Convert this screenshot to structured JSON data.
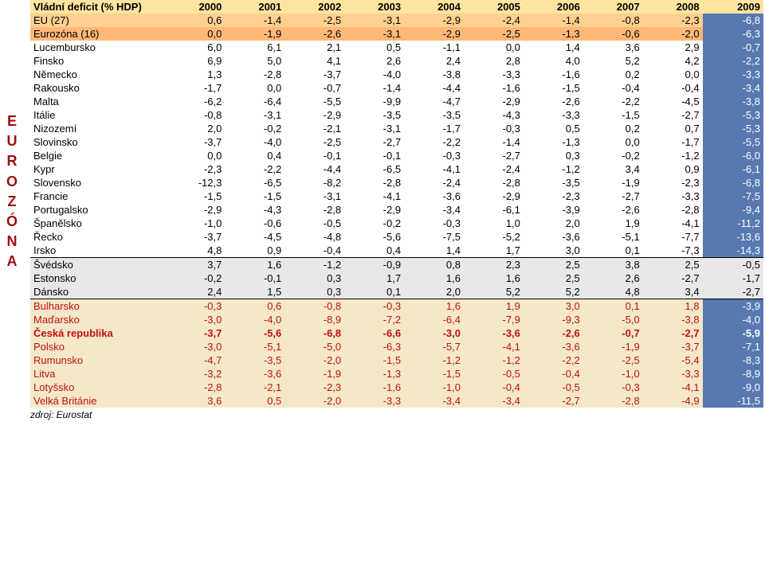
{
  "title": "Vládní deficit (% HDP)",
  "years": [
    "2000",
    "2001",
    "2002",
    "2003",
    "2004",
    "2005",
    "2006",
    "2007",
    "2008",
    "2009"
  ],
  "sidebar": [
    "E",
    "U",
    "R",
    "O",
    "Z",
    "Ó",
    "N",
    "A"
  ],
  "colors": {
    "header_bg": "#ffe4a0",
    "eu_bg": "#ffd090",
    "ez_bg": "#ffb878",
    "last_blue": "#5878b0",
    "group1_bg": "#e8e8e8",
    "group2_bg": "#f5e8c8",
    "red_text": "#c01010",
    "white": "#ffffff"
  },
  "groups": [
    {
      "style": "header_row",
      "rows": [
        {
          "label": "Vládní deficit (% HDP)",
          "vals": [
            "2000",
            "2001",
            "2002",
            "2003",
            "2004",
            "2005",
            "2006",
            "2007",
            "2008",
            "2009"
          ],
          "bold": true
        }
      ]
    },
    {
      "style": "eu_row",
      "rows": [
        {
          "label": "EU (27)",
          "vals": [
            "0,6",
            "-1,4",
            "-2,5",
            "-3,1",
            "-2,9",
            "-2,4",
            "-1,4",
            "-0,8",
            "-2,3",
            "-6,8"
          ],
          "last_blue": true
        }
      ]
    },
    {
      "style": "ez_row",
      "rows": [
        {
          "label": "Eurozóna (16)",
          "vals": [
            "0,0",
            "-1,9",
            "-2,6",
            "-3,1",
            "-2,9",
            "-2,5",
            "-1,3",
            "-0,6",
            "-2,0",
            "-6,3"
          ],
          "last_blue": true
        }
      ]
    },
    {
      "style": "plain",
      "sep_after": true,
      "rows": [
        {
          "label": "Lucembursko",
          "vals": [
            "6,0",
            "6,1",
            "2,1",
            "0,5",
            "-1,1",
            "0,0",
            "1,4",
            "3,6",
            "2,9",
            "-0,7"
          ],
          "last_blue": true
        },
        {
          "label": "Finsko",
          "vals": [
            "6,9",
            "5,0",
            "4,1",
            "2,6",
            "2,4",
            "2,8",
            "4,0",
            "5,2",
            "4,2",
            "-2,2"
          ],
          "last_blue": true
        },
        {
          "label": "Německo",
          "vals": [
            "1,3",
            "-2,8",
            "-3,7",
            "-4,0",
            "-3,8",
            "-3,3",
            "-1,6",
            "0,2",
            "0,0",
            "-3,3"
          ],
          "last_blue": true
        },
        {
          "label": "Rakousko",
          "vals": [
            "-1,7",
            "0,0",
            "-0,7",
            "-1,4",
            "-4,4",
            "-1,6",
            "-1,5",
            "-0,4",
            "-0,4",
            "-3,4"
          ],
          "last_blue": true
        },
        {
          "label": "Malta",
          "vals": [
            "-6,2",
            "-6,4",
            "-5,5",
            "-9,9",
            "-4,7",
            "-2,9",
            "-2,6",
            "-2,2",
            "-4,5",
            "-3,8"
          ],
          "last_blue": true
        },
        {
          "label": "Itálie",
          "vals": [
            "-0,8",
            "-3,1",
            "-2,9",
            "-3,5",
            "-3,5",
            "-4,3",
            "-3,3",
            "-1,5",
            "-2,7",
            "-5,3"
          ],
          "last_blue": true
        },
        {
          "label": "Nizozemí",
          "vals": [
            "2,0",
            "-0,2",
            "-2,1",
            "-3,1",
            "-1,7",
            "-0,3",
            "0,5",
            "0,2",
            "0,7",
            "-5,3"
          ],
          "last_blue": true
        },
        {
          "label": "Slovinsko",
          "vals": [
            "-3,7",
            "-4,0",
            "-2,5",
            "-2,7",
            "-2,2",
            "-1,4",
            "-1,3",
            "0,0",
            "-1,7",
            "-5,5"
          ],
          "last_blue": true
        },
        {
          "label": "Belgie",
          "vals": [
            "0,0",
            "0,4",
            "-0,1",
            "-0,1",
            "-0,3",
            "-2,7",
            "0,3",
            "-0,2",
            "-1,2",
            "-6,0"
          ],
          "last_blue": true
        },
        {
          "label": "Kypr",
          "vals": [
            "-2,3",
            "-2,2",
            "-4,4",
            "-6,5",
            "-4,1",
            "-2,4",
            "-1,2",
            "3,4",
            "0,9",
            "-6,1"
          ],
          "last_blue": true
        },
        {
          "label": "Slovensko",
          "vals": [
            "-12,3",
            "-6,5",
            "-8,2",
            "-2,8",
            "-2,4",
            "-2,8",
            "-3,5",
            "-1,9",
            "-2,3",
            "-6,8"
          ],
          "last_blue": true
        },
        {
          "label": "Francie",
          "vals": [
            "-1,5",
            "-1,5",
            "-3,1",
            "-4,1",
            "-3,6",
            "-2,9",
            "-2,3",
            "-2,7",
            "-3,3",
            "-7,5"
          ],
          "last_blue": true
        },
        {
          "label": "Portugalsko",
          "vals": [
            "-2,9",
            "-4,3",
            "-2,8",
            "-2,9",
            "-3,4",
            "-6,1",
            "-3,9",
            "-2,6",
            "-2,8",
            "-9,4"
          ],
          "last_blue": true
        },
        {
          "label": "Španělsko",
          "vals": [
            "-1,0",
            "-0,6",
            "-0,5",
            "-0,2",
            "-0,3",
            "1,0",
            "2,0",
            "1,9",
            "-4,1",
            "-11,2"
          ],
          "last_blue": true
        },
        {
          "label": "Řecko",
          "vals": [
            "-3,7",
            "-4,5",
            "-4,8",
            "-5,6",
            "-7,5",
            "-5,2",
            "-3,6",
            "-5,1",
            "-7,7",
            "-13,6"
          ],
          "last_blue": true
        },
        {
          "label": "Irsko",
          "vals": [
            "4,8",
            "0,9",
            "-0,4",
            "0,4",
            "1,4",
            "1,7",
            "3,0",
            "0,1",
            "-7,3",
            "-14,3"
          ],
          "last_blue": true
        }
      ]
    },
    {
      "style": "group1",
      "sep_after": true,
      "rows": [
        {
          "label": "Švédsko",
          "vals": [
            "3,7",
            "1,6",
            "-1,2",
            "-0,9",
            "0,8",
            "2,3",
            "2,5",
            "3,8",
            "2,5",
            "-0,5"
          ]
        },
        {
          "label": "Estonsko",
          "vals": [
            "-0,2",
            "-0,1",
            "0,3",
            "1,7",
            "1,6",
            "1,6",
            "2,5",
            "2,6",
            "-2,7",
            "-1,7"
          ]
        },
        {
          "label": "Dánsko",
          "vals": [
            "2,4",
            "1,5",
            "0,3",
            "0,1",
            "2,0",
            "5,2",
            "5,2",
            "4,8",
            "3,4",
            "-2,7"
          ]
        }
      ]
    },
    {
      "style": "group2",
      "rows": [
        {
          "label": "Bulharsko",
          "vals": [
            "-0,3",
            "0,6",
            "-0,8",
            "-0,3",
            "1,6",
            "1,9",
            "3,0",
            "0,1",
            "1,8",
            "-3,9"
          ],
          "red": true,
          "last_blue": true
        },
        {
          "label": "Maďarsko",
          "vals": [
            "-3,0",
            "-4,0",
            "-8,9",
            "-7,2",
            "-6,4",
            "-7,9",
            "-9,3",
            "-5,0",
            "-3,8",
            "-4,0"
          ],
          "red": true,
          "last_blue": true
        },
        {
          "label": "Česká republika",
          "vals": [
            "-3,7",
            "-5,6",
            "-6,8",
            "-6,6",
            "-3,0",
            "-3,6",
            "-2,6",
            "-0,7",
            "-2,7",
            "-5,9"
          ],
          "red": true,
          "bold": true,
          "last_blue": true
        },
        {
          "label": "Polsko",
          "vals": [
            "-3,0",
            "-5,1",
            "-5,0",
            "-6,3",
            "-5,7",
            "-4,1",
            "-3,6",
            "-1,9",
            "-3,7",
            "-7,1"
          ],
          "red": true,
          "last_blue": true
        },
        {
          "label": "Rumunsko",
          "vals": [
            "-4,7",
            "-3,5",
            "-2,0",
            "-1,5",
            "-1,2",
            "-1,2",
            "-2,2",
            "-2,5",
            "-5,4",
            "-8,3"
          ],
          "red": true,
          "last_blue": true
        },
        {
          "label": "Litva",
          "vals": [
            "-3,2",
            "-3,6",
            "-1,9",
            "-1,3",
            "-1,5",
            "-0,5",
            "-0,4",
            "-1,0",
            "-3,3",
            "-8,9"
          ],
          "red": true,
          "last_blue": true
        },
        {
          "label": "Lotyšsko",
          "vals": [
            "-2,8",
            "-2,1",
            "-2,3",
            "-1,6",
            "-1,0",
            "-0,4",
            "-0,5",
            "-0,3",
            "-4,1",
            "-9,0"
          ],
          "red": true,
          "last_blue": true
        },
        {
          "label": "Velká Británie",
          "vals": [
            "3,6",
            "0,5",
            "-2,0",
            "-3,3",
            "-3,4",
            "-3,4",
            "-2,7",
            "-2,8",
            "-4,9",
            "-11,5"
          ],
          "red": true,
          "last_blue": true
        }
      ]
    }
  ],
  "source": "zdroj: Eurostat"
}
